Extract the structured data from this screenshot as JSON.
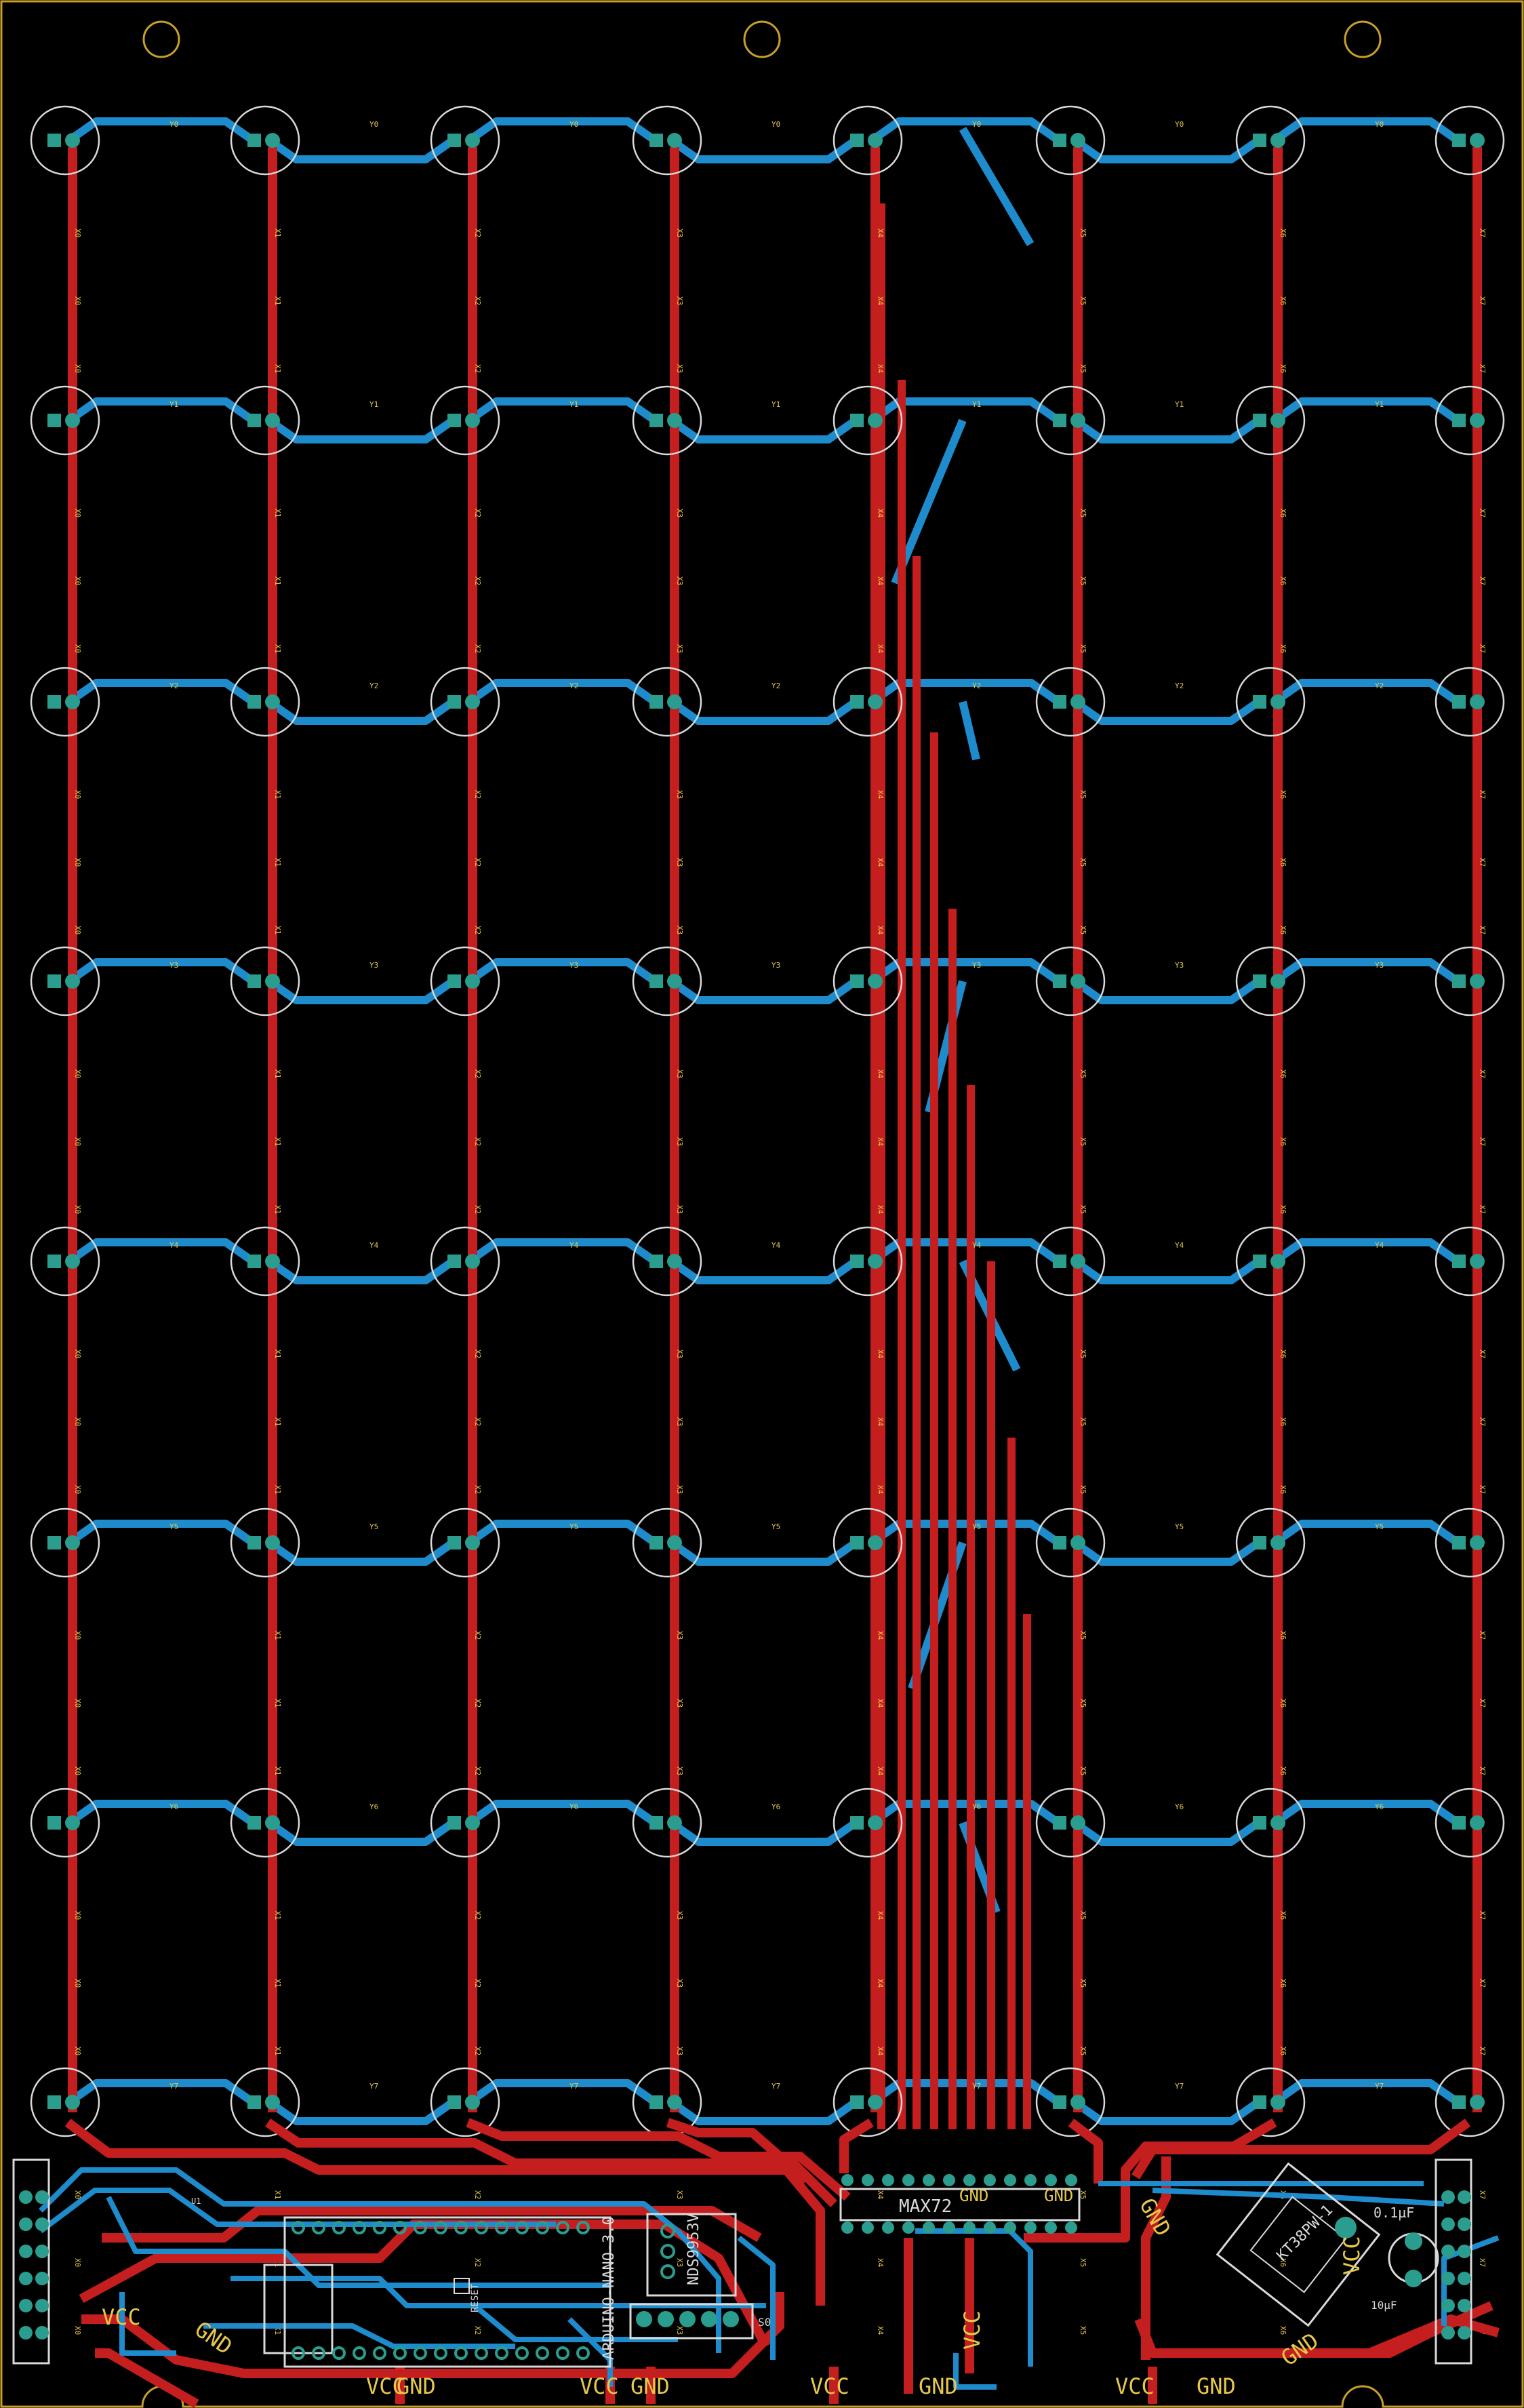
{
  "board": {
    "colors": {
      "background": "#000000",
      "outline": "#c8a028",
      "front_copper": "#c41e1e",
      "back_copper": "#1e8ccc",
      "silkscreen": "#d9d9d9",
      "pad": "#2a9d8f",
      "net_label": "#e6c84a"
    }
  },
  "matrix": {
    "column_nets": [
      "X0",
      "X1",
      "X2",
      "X3",
      "X4",
      "X5",
      "X6",
      "X7"
    ],
    "row_nets": [
      "Y0",
      "Y1",
      "Y2",
      "Y3",
      "Y4",
      "Y5",
      "Y6",
      "Y7"
    ]
  },
  "components": {
    "driver_ic": "MAX72",
    "driver_pin_gnd_1": "GND",
    "driver_pin_gnd_2": "GND",
    "mcu": "ARDUINO-NANO-3.0",
    "mcu_reset": "RESET",
    "mosfet": "NDS9953V",
    "header": "S0",
    "cap": "0.1µF",
    "cap2": "10µF",
    "sensor": "KT38PW-1",
    "u_ref": "U1"
  },
  "power_labels": {
    "left_vcc": "VCC",
    "left_gnd": "GND",
    "bottom_vcc_1": "VCC",
    "bottom_gnd_1": "GND",
    "bottom_vcc_2": "VCC",
    "bottom_gnd_2": "GND",
    "bottom_vcc_3": "VCC",
    "bottom_gnd_3": "GND",
    "bottom_vcc_4": "VCC",
    "bottom_gnd_4": "GND",
    "right_vcc": "VCC",
    "right_gnd": "GND",
    "center_vcc": "VCC",
    "center_gnd": "GND"
  }
}
